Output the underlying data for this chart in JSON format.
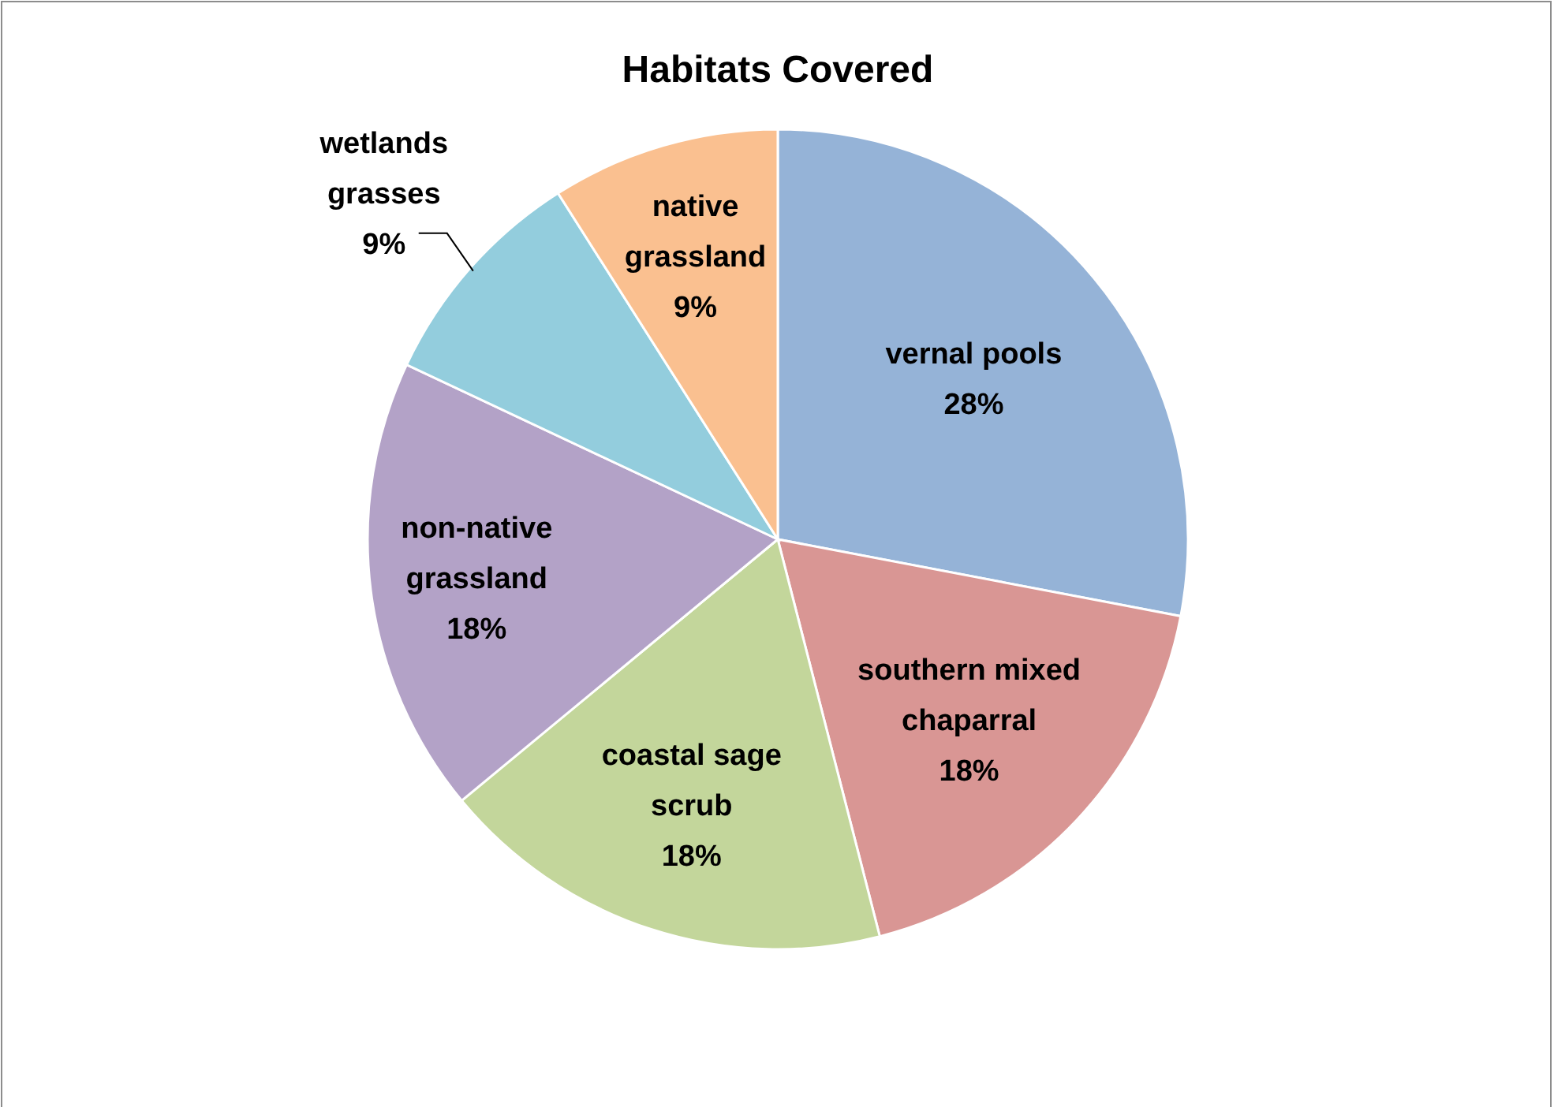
{
  "chart_data": {
    "type": "pie",
    "title": "Habitats Covered",
    "categories": [
      "vernal pools",
      "southern mixed chaparral",
      "coastal sage scrub",
      "non-native grassland",
      "wetlands grasses",
      "native grassland"
    ],
    "values": [
      28,
      18,
      18,
      18,
      9,
      9
    ],
    "value_labels": [
      "28%",
      "18%",
      "18%",
      "18%",
      "9%",
      "9%"
    ],
    "colors": [
      "#95b3d7",
      "#d99694",
      "#c3d69b",
      "#b3a2c7",
      "#93cddd",
      "#fac090"
    ]
  }
}
